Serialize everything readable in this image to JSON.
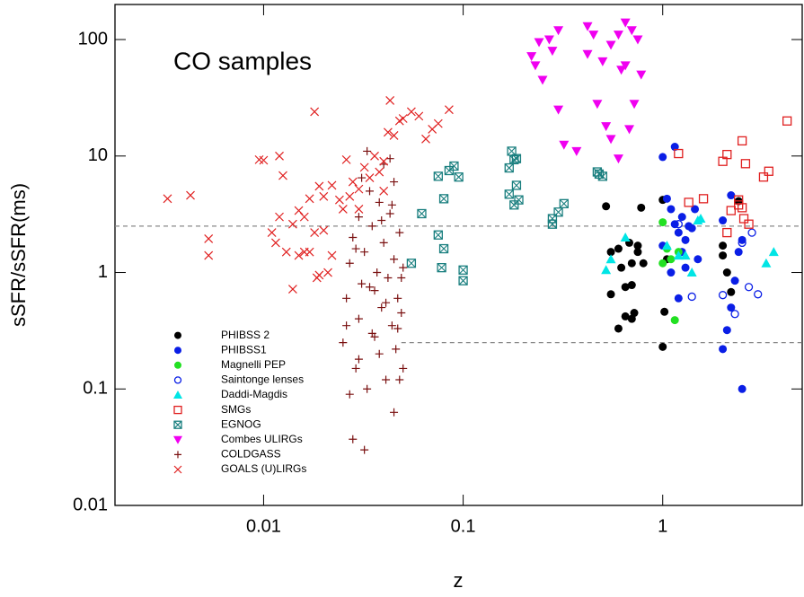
{
  "chart_data": {
    "type": "scatter",
    "x_label": "z",
    "y_label": "sSFR/sSFR(ms)",
    "annotation": "CO samples",
    "xscale": "log",
    "yscale": "log",
    "xlim": [
      0.0018,
      5
    ],
    "ylim": [
      0.01,
      200
    ],
    "xticks": [
      0.01,
      0.1,
      1
    ],
    "yticks": [
      0.01,
      0.1,
      1,
      10,
      100
    ],
    "legend": "lower left",
    "hlines": [
      {
        "y": 2.5,
        "color": "#888888"
      },
      {
        "y": 0.25,
        "xmin": 0.049,
        "color": "#888888"
      }
    ],
    "series": [
      {
        "name": "PHIBSS 2",
        "color": "#000000",
        "marker": "circle",
        "x": [
          0.52,
          0.55,
          0.6,
          0.62,
          0.65,
          0.68,
          0.7,
          0.72,
          0.75,
          0.78,
          0.55,
          0.65,
          0.7,
          0.75,
          1.0,
          1.02,
          1.05,
          1.0,
          2.0,
          2.1,
          2.2,
          2.4,
          2.0,
          0.6,
          0.7,
          0.8
        ],
        "y": [
          3.7,
          1.5,
          1.6,
          1.1,
          0.75,
          1.8,
          1.2,
          0.45,
          1.7,
          3.6,
          0.65,
          0.42,
          0.78,
          1.5,
          0.23,
          0.46,
          1.3,
          4.2,
          1.7,
          1.0,
          0.68,
          4.1,
          1.4,
          0.33,
          0.4,
          1.2
        ]
      },
      {
        "name": "PHIBSS1",
        "color": "#0a1ee6",
        "marker": "circle",
        "x": [
          1.0,
          1.05,
          1.1,
          1.15,
          1.2,
          1.25,
          1.3,
          1.35,
          1.4,
          1.5,
          1.1,
          1.2,
          1.0,
          1.3,
          1.45,
          2.0,
          2.1,
          2.2,
          2.3,
          2.4,
          2.5,
          2.0,
          2.2,
          1.15,
          2.5,
          1.25
        ],
        "y": [
          9.8,
          4.3,
          3.5,
          2.6,
          2.2,
          3.0,
          1.9,
          2.5,
          2.4,
          1.3,
          1.0,
          0.6,
          1.7,
          1.1,
          3.5,
          0.22,
          0.32,
          0.5,
          0.85,
          1.5,
          0.1,
          2.8,
          4.6,
          12,
          1.9,
          1.5
        ]
      },
      {
        "name": "Magnelli PEP",
        "color": "#22e022",
        "marker": "circle",
        "x": [
          1.0,
          1.05,
          1.1,
          1.15,
          1.2,
          1.0
        ],
        "y": [
          2.7,
          1.6,
          1.3,
          0.39,
          1.5,
          1.2
        ]
      },
      {
        "name": "Saintonge lenses",
        "color": "#0a1ee6",
        "marker": "open-circle",
        "x": [
          1.4,
          2.0,
          2.3,
          2.5,
          2.8,
          3.0,
          2.7,
          1.2
        ],
        "y": [
          0.62,
          0.64,
          0.44,
          1.8,
          2.2,
          0.65,
          0.75,
          2.6
        ]
      },
      {
        "name": "Daddi-Magdis",
        "color": "#00e5e5",
        "marker": "triangle-up",
        "x": [
          0.52,
          0.55,
          0.65,
          1.05,
          1.3,
          1.4,
          1.5,
          1.55,
          3.3,
          3.6,
          1.2
        ],
        "y": [
          1.05,
          1.3,
          2.0,
          1.7,
          1.4,
          1.0,
          2.8,
          2.9,
          1.2,
          1.5,
          1.4
        ]
      },
      {
        "name": "SMGs",
        "color": "#e02020",
        "marker": "open-square",
        "x": [
          1.2,
          1.35,
          1.6,
          2.0,
          2.1,
          2.2,
          2.4,
          2.5,
          2.6,
          2.7,
          2.4,
          3.2,
          3.4,
          4.2,
          2.1,
          2.5,
          2.55
        ],
        "y": [
          10.5,
          4.0,
          4.3,
          9.0,
          10.3,
          3.4,
          3.8,
          13.5,
          8.6,
          2.6,
          4.2,
          6.6,
          7.4,
          20,
          2.2,
          3.6,
          2.9
        ]
      },
      {
        "name": "EGNOG",
        "color": "#1a7f7f",
        "marker": "boxed-x",
        "x": [
          0.055,
          0.062,
          0.075,
          0.078,
          0.08,
          0.085,
          0.09,
          0.095,
          0.1,
          0.1,
          0.08,
          0.075,
          0.17,
          0.175,
          0.18,
          0.185,
          0.19,
          0.18,
          0.17,
          0.185,
          0.28,
          0.3,
          0.32,
          0.28,
          0.47,
          0.5,
          0.48
        ],
        "y": [
          1.2,
          3.2,
          2.1,
          1.1,
          4.3,
          7.5,
          8.2,
          6.6,
          1.05,
          0.85,
          1.6,
          6.7,
          7.9,
          11,
          9.3,
          5.6,
          4.2,
          3.8,
          4.7,
          9.5,
          2.6,
          3.3,
          3.9,
          2.9,
          7.3,
          6.7,
          7
        ]
      },
      {
        "name": "Combes ULIRGs",
        "color": "#f000f0",
        "marker": "triangle-down",
        "x": [
          0.22,
          0.23,
          0.24,
          0.25,
          0.27,
          0.28,
          0.3,
          0.32,
          0.37,
          0.42,
          0.45,
          0.47,
          0.5,
          0.52,
          0.55,
          0.6,
          0.6,
          0.62,
          0.65,
          0.68,
          0.7,
          0.72,
          0.75,
          0.78,
          0.3,
          0.42,
          0.55,
          0.65
        ],
        "y": [
          72,
          60,
          95,
          45,
          100,
          80,
          120,
          12.5,
          11,
          75,
          110,
          28,
          65,
          18,
          90,
          9.5,
          110,
          55,
          140,
          17,
          120,
          28,
          100,
          50,
          25,
          130,
          14,
          60
        ]
      },
      {
        "name": "COLDGASS",
        "color": "#7a1010",
        "marker": "plus",
        "x": [
          0.025,
          0.026,
          0.027,
          0.028,
          0.029,
          0.03,
          0.03,
          0.031,
          0.032,
          0.033,
          0.034,
          0.035,
          0.035,
          0.036,
          0.037,
          0.038,
          0.038,
          0.039,
          0.04,
          0.04,
          0.041,
          0.042,
          0.043,
          0.044,
          0.045,
          0.045,
          0.046,
          0.047,
          0.048,
          0.049,
          0.05,
          0.05,
          0.033,
          0.032,
          0.028,
          0.045,
          0.048,
          0.027,
          0.03,
          0.036,
          0.041,
          0.044,
          0.029,
          0.034,
          0.039,
          0.043,
          0.047,
          0.031,
          0.026,
          0.049
        ],
        "y": [
          0.25,
          0.6,
          1.2,
          2.0,
          0.15,
          0.4,
          3.0,
          0.8,
          1.5,
          0.1,
          5.0,
          0.3,
          2.5,
          0.7,
          1.0,
          0.2,
          4.0,
          0.5,
          1.8,
          8.5,
          0.12,
          0.9,
          3.2,
          0.35,
          1.3,
          6.0,
          0.22,
          0.6,
          2.2,
          0.45,
          0.15,
          1.1,
          11,
          0.03,
          0.037,
          0.063,
          0.12,
          0.09,
          0.18,
          0.28,
          0.55,
          3.8,
          1.6,
          0.75,
          2.8,
          9.5,
          0.33,
          6.5,
          0.35,
          0.9
        ]
      },
      {
        "name": "GOALS (U)LIRGs",
        "color": "#e02020",
        "marker": "x",
        "x": [
          0.0033,
          0.0043,
          0.0053,
          0.0053,
          0.0095,
          0.01,
          0.012,
          0.011,
          0.0115,
          0.012,
          0.0125,
          0.013,
          0.014,
          0.014,
          0.015,
          0.015,
          0.016,
          0.017,
          0.017,
          0.018,
          0.018,
          0.019,
          0.019,
          0.02,
          0.02,
          0.021,
          0.022,
          0.022,
          0.024,
          0.025,
          0.026,
          0.027,
          0.028,
          0.03,
          0.032,
          0.034,
          0.036,
          0.038,
          0.04,
          0.042,
          0.043,
          0.045,
          0.048,
          0.05,
          0.055,
          0.06,
          0.065,
          0.07,
          0.075,
          0.085,
          0.04,
          0.03,
          0.016,
          0.0185
        ],
        "y": [
          4.3,
          4.6,
          1.95,
          1.4,
          9.3,
          9.2,
          10,
          2.2,
          1.8,
          3,
          6.8,
          1.5,
          0.72,
          2.6,
          1.4,
          3.4,
          1.5,
          1.5,
          4.3,
          2.2,
          24,
          5.5,
          0.95,
          2.3,
          4.5,
          1.0,
          5.6,
          1.4,
          4.2,
          3.5,
          9.3,
          4.5,
          6.0,
          5.2,
          8.0,
          6.5,
          10,
          7.3,
          9.0,
          16,
          30,
          15,
          20,
          21,
          24,
          22,
          14,
          17,
          19,
          25,
          5,
          3.5,
          3.0,
          0.9
        ]
      }
    ]
  }
}
